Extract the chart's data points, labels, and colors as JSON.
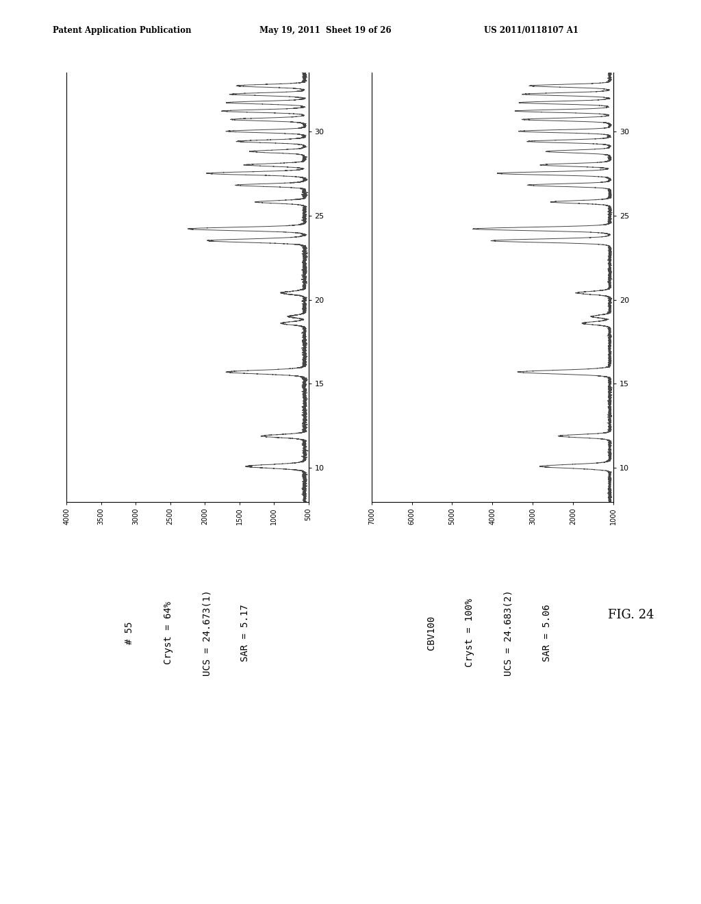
{
  "header_left": "Patent Application Publication",
  "header_center": "May 19, 2011  Sheet 19 of 26",
  "header_right": "US 2011/0118107 A1",
  "fig_label": "FIG. 24",
  "plot1": {
    "labels": [
      "# 55",
      "Cryst = 64%",
      "UCS = 24.673(1)",
      "SAR = 5.17"
    ],
    "xmin": 500,
    "xmax": 4000,
    "xticks": [
      4000,
      3500,
      3000,
      2500,
      2000,
      1500,
      1000,
      500
    ],
    "yticks_right": [
      10,
      15,
      20,
      25,
      30
    ],
    "theta_min": 8.0,
    "theta_max": 33.5
  },
  "plot2": {
    "labels": [
      "CBV100",
      "Cryst = 100%",
      "UCS = 24.683(2)",
      "SAR = 5.06"
    ],
    "xmin": 1000,
    "xmax": 7000,
    "xticks": [
      7000,
      6000,
      5000,
      4000,
      3000,
      2000,
      1000
    ],
    "yticks_right": [
      10,
      15,
      20,
      25,
      30
    ],
    "theta_min": 8.0,
    "theta_max": 33.5
  },
  "peaks_common": [
    10.1,
    11.9,
    15.7,
    18.6,
    19.0,
    20.4,
    23.5,
    24.2,
    25.8,
    26.8,
    27.5,
    28.0,
    28.8,
    29.4,
    30.0,
    30.7,
    31.2,
    31.7,
    32.2,
    32.7
  ],
  "heights1": [
    0.3,
    0.22,
    0.4,
    0.12,
    0.08,
    0.12,
    0.5,
    0.6,
    0.25,
    0.35,
    0.5,
    0.3,
    0.28,
    0.35,
    0.4,
    0.38,
    0.42,
    0.4,
    0.38,
    0.35
  ],
  "heights2": [
    0.38,
    0.28,
    0.5,
    0.15,
    0.1,
    0.18,
    0.65,
    0.75,
    0.32,
    0.45,
    0.62,
    0.38,
    0.35,
    0.45,
    0.5,
    0.48,
    0.52,
    0.5,
    0.48,
    0.44
  ],
  "widths": [
    0.11,
    0.09,
    0.11,
    0.09,
    0.08,
    0.09,
    0.1,
    0.1,
    0.08,
    0.08,
    0.09,
    0.08,
    0.08,
    0.08,
    0.08,
    0.08,
    0.08,
    0.08,
    0.08,
    0.08
  ],
  "background_color": "#ffffff",
  "line_color": "#444444",
  "text_color": "#000000",
  "border_color": "#000000"
}
